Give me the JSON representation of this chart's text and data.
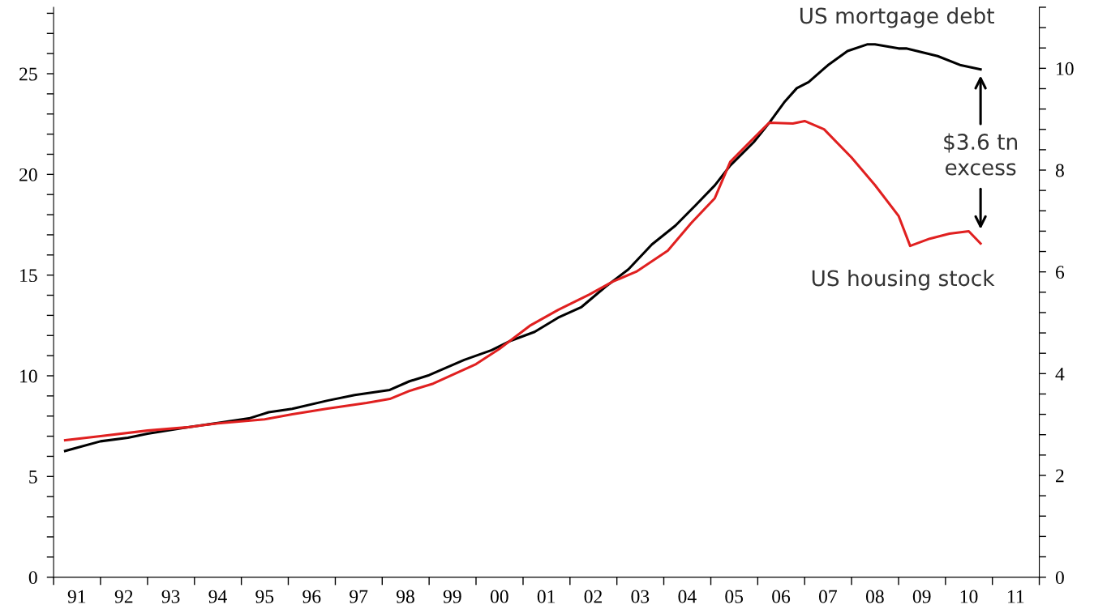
{
  "chart_data": {
    "type": "line",
    "xlim": [
      "1991-01-01",
      "2012-01-01"
    ],
    "xticks": [
      {
        "value": "1991-01-01",
        "label": null
      },
      {
        "value": "1991-07-01",
        "label": "91"
      },
      {
        "value": "1992-01-01",
        "label": null
      },
      {
        "value": "1992-07-01",
        "label": "92"
      },
      {
        "value": "1993-01-01",
        "label": null
      },
      {
        "value": "1993-07-01",
        "label": "93"
      },
      {
        "value": "1994-01-01",
        "label": null
      },
      {
        "value": "1994-07-01",
        "label": "94"
      },
      {
        "value": "1995-01-01",
        "label": null
      },
      {
        "value": "1995-07-01",
        "label": "95"
      },
      {
        "value": "1996-01-01",
        "label": null
      },
      {
        "value": "1996-07-01",
        "label": "96"
      },
      {
        "value": "1997-01-01",
        "label": null
      },
      {
        "value": "1997-07-01",
        "label": "97"
      },
      {
        "value": "1998-01-01",
        "label": null
      },
      {
        "value": "1998-07-01",
        "label": "98"
      },
      {
        "value": "1999-01-01",
        "label": null
      },
      {
        "value": "1999-07-01",
        "label": "99"
      },
      {
        "value": "2000-01-01",
        "label": null
      },
      {
        "value": "2000-07-01",
        "label": "00"
      },
      {
        "value": "2001-01-01",
        "label": null
      },
      {
        "value": "2001-07-01",
        "label": "01"
      },
      {
        "value": "2002-01-01",
        "label": null
      },
      {
        "value": "2002-07-01",
        "label": "02"
      },
      {
        "value": "2003-01-01",
        "label": null
      },
      {
        "value": "2003-07-01",
        "label": "03"
      },
      {
        "value": "2004-01-01",
        "label": null
      },
      {
        "value": "2004-07-01",
        "label": "04"
      },
      {
        "value": "2005-01-01",
        "label": null
      },
      {
        "value": "2005-07-01",
        "label": "05"
      },
      {
        "value": "2006-01-01",
        "label": null
      },
      {
        "value": "2006-07-01",
        "label": "06"
      },
      {
        "value": "2007-01-01",
        "label": null
      },
      {
        "value": "2007-07-01",
        "label": "07"
      },
      {
        "value": "2008-01-01",
        "label": null
      },
      {
        "value": "2008-07-01",
        "label": "08"
      },
      {
        "value": "2009-01-01",
        "label": null
      },
      {
        "value": "2009-07-01",
        "label": "09"
      },
      {
        "value": "2010-01-01",
        "label": null
      },
      {
        "value": "2010-07-01",
        "label": "10"
      },
      {
        "value": "2011-01-01",
        "label": null
      },
      {
        "value": "2011-07-01",
        "label": "11"
      },
      {
        "value": "2012-01-01",
        "label": null
      }
    ],
    "ylim": [
      0,
      28.3
    ],
    "yticks": [
      0,
      {
        "value": 1,
        "label": null
      },
      {
        "value": 2,
        "label": null
      },
      {
        "value": 3,
        "label": null
      },
      {
        "value": 4,
        "label": null
      },
      5,
      {
        "value": 6,
        "label": null
      },
      {
        "value": 7,
        "label": null
      },
      {
        "value": 8,
        "label": null
      },
      {
        "value": 9,
        "label": null
      },
      10,
      {
        "value": 11,
        "label": null
      },
      {
        "value": 12,
        "label": null
      },
      {
        "value": 13,
        "label": null
      },
      {
        "value": 14,
        "label": null
      },
      15,
      {
        "value": 16,
        "label": null
      },
      {
        "value": 17,
        "label": null
      },
      {
        "value": 18,
        "label": null
      },
      {
        "value": 19,
        "label": null
      },
      20,
      {
        "value": 21,
        "label": null
      },
      {
        "value": 22,
        "label": null
      },
      {
        "value": 23,
        "label": null
      },
      {
        "value": 24,
        "label": null
      },
      25,
      {
        "value": 26,
        "label": null
      },
      {
        "value": 27,
        "label": null
      },
      {
        "value": 28,
        "label": null
      }
    ],
    "y2lim": [
      0,
      11.2
    ],
    "y2ticks": [
      0,
      {
        "value": 0.4,
        "label": null
      },
      {
        "value": 0.8,
        "label": null
      },
      {
        "value": 1.2,
        "label": null
      },
      {
        "value": 1.6,
        "label": null
      },
      2,
      {
        "value": 2.4,
        "label": null
      },
      {
        "value": 2.8,
        "label": null
      },
      {
        "value": 3.2,
        "label": null
      },
      {
        "value": 3.6,
        "label": null
      },
      4,
      {
        "value": 4.4,
        "label": null
      },
      {
        "value": 4.8,
        "label": null
      },
      {
        "value": 5.2,
        "label": null
      },
      {
        "value": 5.6,
        "label": null
      },
      6,
      {
        "value": 6.4,
        "label": null
      },
      {
        "value": 6.8,
        "label": null
      },
      {
        "value": 7.2,
        "label": null
      },
      {
        "value": 7.6,
        "label": null
      },
      8,
      {
        "value": 8.4,
        "label": null
      },
      {
        "value": 8.8,
        "label": null
      },
      {
        "value": 9.2,
        "label": null
      },
      {
        "value": 9.6,
        "label": null
      },
      10,
      {
        "value": 10.4,
        "label": null
      },
      {
        "value": 10.8,
        "label": null
      },
      {
        "value": 11.2,
        "label": null
      }
    ],
    "grid": false,
    "legend": false,
    "line_style": "solid",
    "series": [
      {
        "name": "US mortgage debt",
        "color": "#000000",
        "axis": "y2",
        "x": [
          "1991-04",
          "1992-01",
          "1992-08",
          "1993-01",
          "1993-10",
          "1994-07",
          "1995-03",
          "1995-08",
          "1996-02",
          "1996-11",
          "1997-06",
          "1998-03",
          "1998-08",
          "1999-01",
          "1999-10",
          "2000-05",
          "2000-10",
          "2001-04",
          "2001-10",
          "2002-04",
          "2002-10",
          "2003-04",
          "2003-10",
          "2004-04",
          "2004-09",
          "2005-02",
          "2005-06",
          "2005-12",
          "2006-04",
          "2006-08",
          "2006-11",
          "2007-02",
          "2007-07",
          "2007-12",
          "2008-05",
          "2008-07",
          "2009-01",
          "2009-03",
          "2009-11",
          "2010-05",
          "2010-10"
        ],
        "values": [
          2.48,
          2.67,
          2.74,
          2.82,
          2.93,
          3.03,
          3.12,
          3.24,
          3.31,
          3.47,
          3.58,
          3.68,
          3.85,
          3.97,
          4.27,
          4.46,
          4.65,
          4.82,
          5.1,
          5.31,
          5.7,
          6.05,
          6.54,
          6.91,
          7.3,
          7.7,
          8.09,
          8.55,
          8.93,
          9.35,
          9.61,
          9.73,
          10.06,
          10.34,
          10.47,
          10.47,
          10.39,
          10.39,
          10.24,
          10.06,
          9.98
        ]
      },
      {
        "name": "US housing stock",
        "color": "#e02020",
        "x": [
          "1991-04",
          "1992-01",
          "1993-01",
          "1993-11",
          "1994-07",
          "1995-07",
          "1996-02",
          "1996-11",
          "1997-09",
          "1998-03",
          "1998-08",
          "1999-02",
          "2000-01",
          "2000-07",
          "2001-03",
          "2001-10",
          "2002-06",
          "2002-12",
          "2003-06",
          "2004-02",
          "2004-08",
          "2005-02",
          "2005-06",
          "2005-11",
          "2006-04",
          "2006-10",
          "2007-01",
          "2007-06",
          "2008-01",
          "2008-07",
          "2009-01",
          "2009-04",
          "2009-09",
          "2010-02",
          "2010-07",
          "2010-10"
        ],
        "values": [
          6.8,
          7.0,
          7.28,
          7.44,
          7.64,
          7.84,
          8.09,
          8.37,
          8.65,
          8.85,
          9.25,
          9.61,
          10.58,
          11.34,
          12.51,
          13.27,
          14.04,
          14.68,
          15.17,
          16.21,
          17.58,
          18.82,
          20.62,
          21.61,
          22.57,
          22.53,
          22.65,
          22.24,
          20.84,
          19.47,
          17.94,
          16.45,
          16.81,
          17.06,
          17.18,
          16.57
        ]
      }
    ],
    "annotations": [
      "$3.6 tn\nexcess"
    ]
  }
}
